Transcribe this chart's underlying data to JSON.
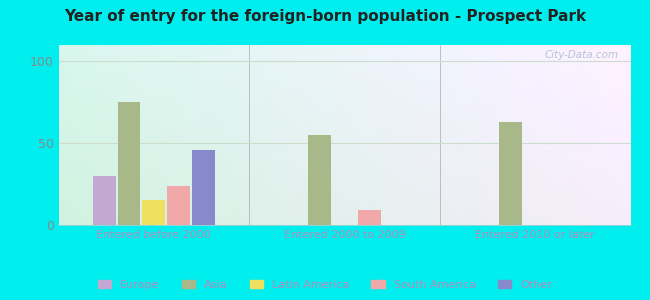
{
  "title": "Year of entry for the foreign-born population - Prospect Park",
  "categories": [
    "Entered before 2000",
    "Entered 2000 to 2009",
    "Entered 2010 or later"
  ],
  "series": {
    "Europe": [
      30,
      0,
      0
    ],
    "Asia": [
      75,
      55,
      63
    ],
    "Latin America": [
      15,
      0,
      0
    ],
    "South America": [
      24,
      9,
      0
    ],
    "Other": [
      46,
      0,
      0
    ]
  },
  "colors": {
    "Europe": "#c4a8d4",
    "Asia": "#a8b888",
    "Latin America": "#f0e060",
    "South America": "#f0a8a8",
    "Other": "#8888cc"
  },
  "ylim": [
    0,
    110
  ],
  "yticks": [
    0,
    50,
    100
  ],
  "bg_outer": "#00eeee",
  "title_color": "#222222",
  "axis_label_color": "#bb88bb",
  "ytick_color": "#888888",
  "watermark": "City-Data.com",
  "grid_color": "#ccddcc",
  "legend_label_color": "#bb88bb"
}
